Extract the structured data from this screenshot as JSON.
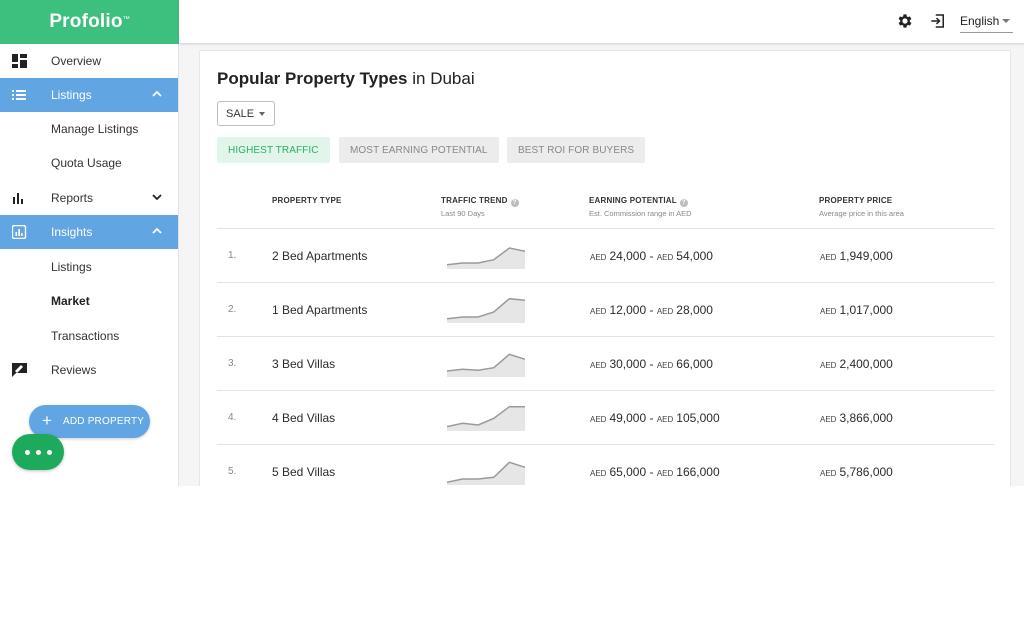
{
  "app": {
    "logo": "Profolio",
    "logo_mark": "™"
  },
  "topbar": {
    "settings_icon": "gear-icon",
    "logout_icon": "logout-icon",
    "language": "English"
  },
  "sidebar": {
    "items": [
      {
        "label": "Overview",
        "icon": "dashboard-icon"
      },
      {
        "label": "Listings",
        "icon": "list-icon",
        "active": true,
        "expanded": true
      },
      {
        "label": "Manage Listings"
      },
      {
        "label": "Quota Usage"
      },
      {
        "label": "Reports",
        "icon": "bar-chart-icon"
      },
      {
        "label": "Insights",
        "icon": "insights-icon",
        "active": true,
        "expanded": true
      },
      {
        "label": "Listings"
      },
      {
        "label": "Market",
        "selected": true
      },
      {
        "label": "Transactions"
      },
      {
        "label": "Reviews",
        "icon": "reviews-icon"
      }
    ],
    "add_property_label": "ADD PROPERTY"
  },
  "main": {
    "title_strong": "Popular Property Types",
    "title_rest": " in Dubai",
    "sale_filter": "SALE",
    "tabs": [
      {
        "label": "HIGHEST TRAFFIC",
        "active": true
      },
      {
        "label": "MOST EARNING POTENTIAL",
        "active": false
      },
      {
        "label": "BEST ROI FOR BUYERS",
        "active": false
      }
    ],
    "columns": [
      {
        "label": "PROPERTY TYPE",
        "sub": ""
      },
      {
        "label": "TRAFFIC TREND",
        "sub": "Last 90 Days"
      },
      {
        "label": "EARNING POTENTIAL",
        "sub": "Est. Commission range in AED"
      },
      {
        "label": "PROPERTY PRICE",
        "sub": "Average price in this area"
      }
    ],
    "currency": "AED",
    "rows": [
      {
        "rank": "1.",
        "type": "2 Bed Apartments",
        "earn_min": "24,000",
        "earn_max": "54,000",
        "price": "1,949,000",
        "trend": [
          2,
          3,
          3,
          5,
          12,
          10
        ]
      },
      {
        "rank": "2.",
        "type": "1 Bed Apartments",
        "earn_min": "12,000",
        "earn_max": "28,000",
        "price": "1,017,000",
        "trend": [
          2,
          3,
          3,
          6,
          14,
          13
        ]
      },
      {
        "rank": "3.",
        "type": "3 Bed Villas",
        "earn_min": "30,000",
        "earn_max": "66,000",
        "price": "2,400,000",
        "trend": [
          3,
          4,
          3.5,
          5,
          13,
          10
        ]
      },
      {
        "rank": "4.",
        "type": "4 Bed Villas",
        "earn_min": "49,000",
        "earn_max": "105,000",
        "price": "3,866,000",
        "trend": [
          2,
          4,
          3,
          7,
          14,
          14
        ]
      },
      {
        "rank": "5.",
        "type": "5 Bed Villas",
        "earn_min": "65,000",
        "earn_max": "166,000",
        "price": "5,786,000",
        "trend": [
          1,
          3,
          3,
          4,
          13,
          10
        ]
      }
    ]
  }
}
